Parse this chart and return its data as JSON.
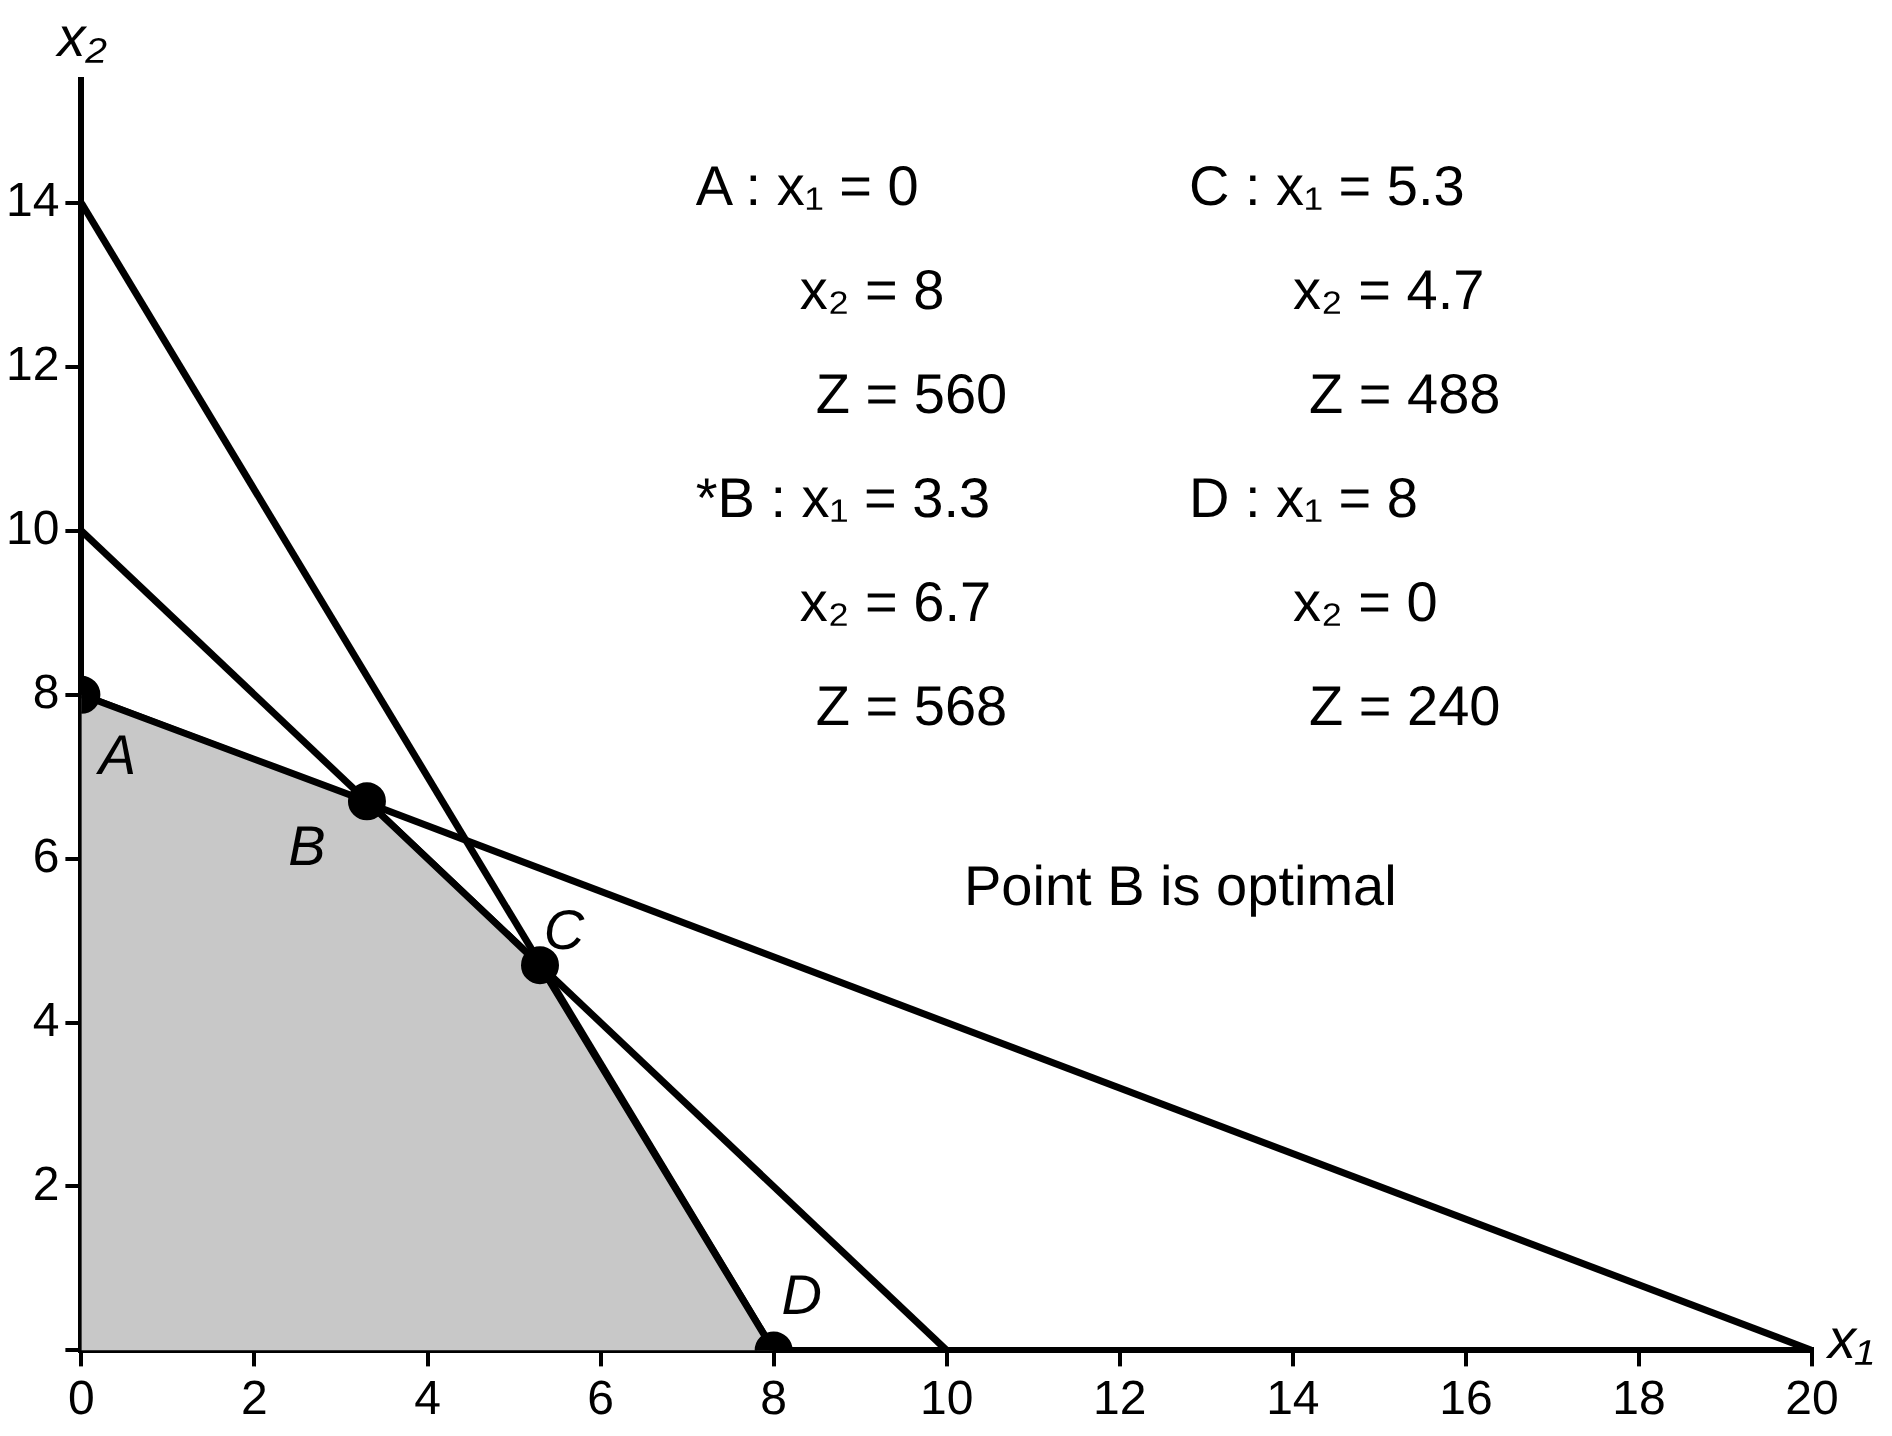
{
  "chart_data": {
    "type": "line",
    "xlabel": "x₁",
    "ylabel": "x₂",
    "xlim": [
      0,
      20
    ],
    "ylim": [
      0,
      15.5
    ],
    "xticks": [
      0,
      2,
      4,
      6,
      8,
      10,
      12,
      14,
      16,
      18,
      20
    ],
    "yticks": [
      {
        "value": 0,
        "label": null
      },
      2,
      4,
      6,
      8,
      10,
      12,
      14
    ],
    "grid": false,
    "legend": false,
    "line_style": "solid",
    "series": [
      {
        "type": "area",
        "color": "#c8c8c8",
        "x": [
          0,
          3.3,
          5.3,
          8
        ],
        "values": [
          8,
          6.7,
          4.7,
          0
        ]
      },
      {
        "color": "#000000",
        "x": [
          0,
          20
        ],
        "values": [
          8,
          0
        ]
      },
      {
        "color": "#000000",
        "x": [
          0,
          10
        ],
        "values": [
          10,
          0
        ]
      },
      {
        "color": "#000000",
        "x": [
          0,
          8
        ],
        "values": [
          14,
          0
        ]
      },
      {
        "type": "scatter",
        "marker": "circle",
        "color": "#000000",
        "x": [
          0,
          3.3,
          5.3,
          8
        ],
        "values": [
          8,
          6.7,
          4.7,
          0
        ]
      }
    ],
    "annotations": [
      "A : x₁ = 0",
      "C : x₁ = 5.3",
      "x₂ = 8",
      "x₂ = 4.7",
      "Z = 560",
      "Z = 488",
      "*B : x₁ = 3.3",
      "D : x₁ = 8",
      "x₂ = 6.7",
      "x₂ = 0",
      "Z = 568",
      "Z = 240",
      "Point B is optimal",
      {
        "text": "A",
        "x": 0,
        "y": 8
      },
      {
        "text": "B",
        "x": 3.3,
        "y": 6.7
      },
      {
        "text": "C",
        "x": 5.3,
        "y": 4.7
      },
      {
        "text": "D",
        "x": 8,
        "y": 0
      }
    ]
  }
}
